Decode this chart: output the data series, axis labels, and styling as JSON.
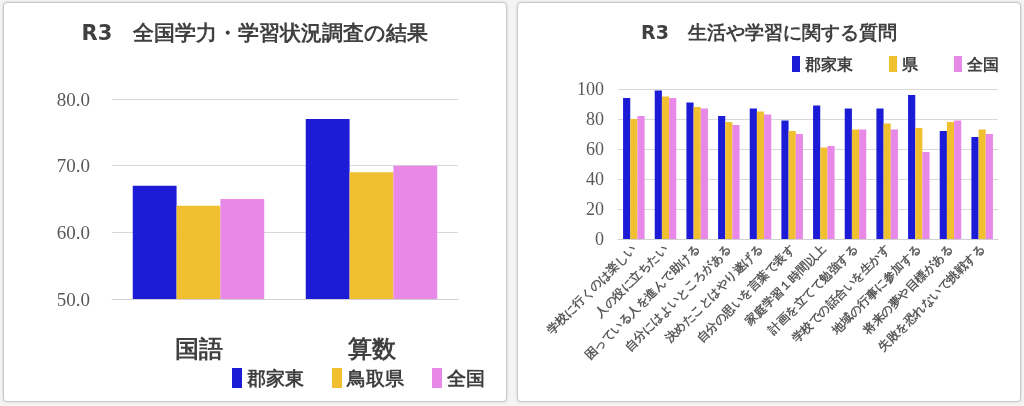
{
  "chart_data": [
    {
      "type": "bar",
      "title": "R3　全国学力・学習状況調査の結果",
      "categories": [
        "国語",
        "算数"
      ],
      "series": [
        {
          "name": "郡家東",
          "color": "#1c1cd6",
          "values": [
            67,
            77
          ]
        },
        {
          "name": "鳥取県",
          "color": "#f0c030",
          "values": [
            64,
            69
          ]
        },
        {
          "name": "全国",
          "color": "#e889e8",
          "values": [
            65,
            70
          ]
        }
      ],
      "ylim": [
        50,
        80
      ],
      "yticks": [
        {
          "value": 50,
          "label": "50.0"
        },
        {
          "value": 60,
          "label": "60.0"
        },
        {
          "value": 70,
          "label": "70.0"
        },
        {
          "value": 80,
          "label": "80.0"
        }
      ],
      "grid": "y",
      "legend": "bottom right"
    },
    {
      "type": "bar",
      "title": "R3　生活や学習に関する質問",
      "categories": [
        "学校に行くのは楽しい",
        "人の役に立ちたい",
        "困っている人を進んで助ける",
        "自分にはよいところがある",
        "決めたことはやり遂げる",
        "自分の思いを言葉で表す",
        "家庭学習１時間以上",
        "計画を立てて勉強する",
        "学校での話合いを生かす",
        "地域の行事に参加する",
        "将来の夢や目標がある",
        "失敗を恐れないで挑戦する"
      ],
      "series": [
        {
          "name": "郡家東",
          "color": "#1c1cd6",
          "values": [
            94,
            99,
            91,
            82,
            87,
            79,
            89,
            87,
            87,
            96,
            72,
            68
          ]
        },
        {
          "name": "県",
          "color": "#f0c030",
          "values": [
            80,
            95,
            88,
            78,
            85,
            72,
            61,
            73,
            77,
            74,
            78,
            73
          ]
        },
        {
          "name": "全国",
          "color": "#e889e8",
          "values": [
            82,
            94,
            87,
            76,
            83,
            70,
            62,
            73,
            73,
            58,
            79,
            70
          ]
        }
      ],
      "ylim": [
        0,
        100
      ],
      "yticks": [
        0,
        20,
        40,
        60,
        80,
        100
      ],
      "grid": "y",
      "legend": "top right"
    }
  ]
}
